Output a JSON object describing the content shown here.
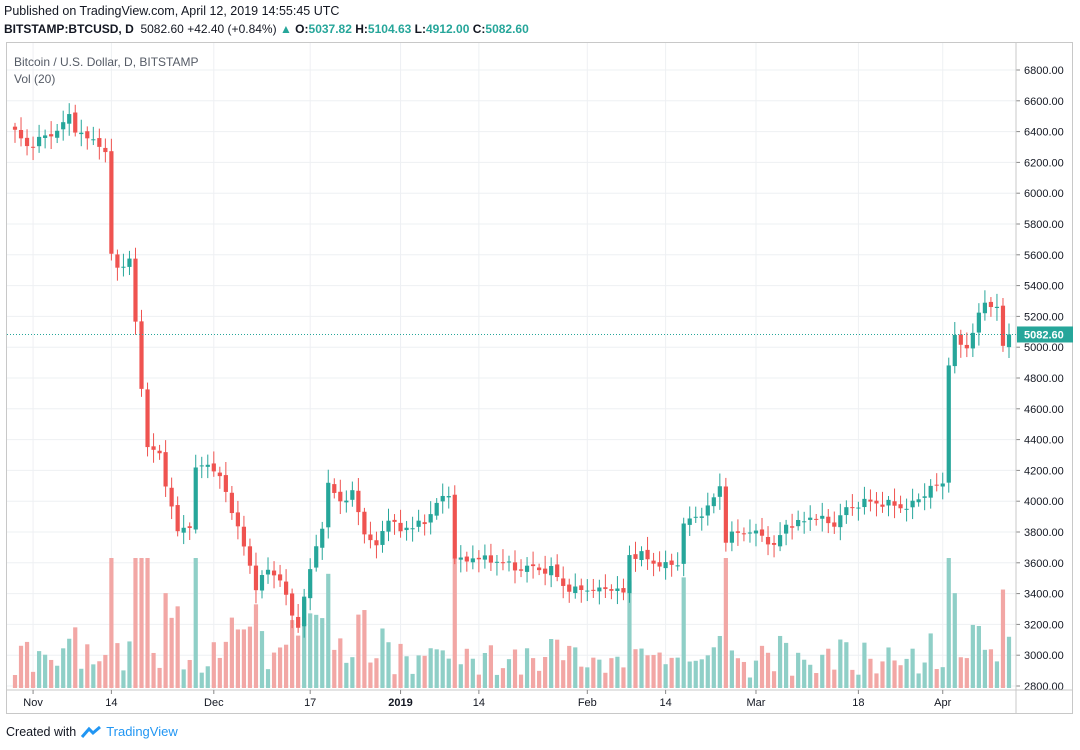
{
  "header": {
    "published": "Published on TradingView.com, April 12, 2019 14:55:45 UTC",
    "symbol": "BITSTAMP:BTCUSD, D",
    "last": "5082.60",
    "change": "+42.40 (+0.84%)",
    "o_label": "O:",
    "o": "5037.82",
    "h_label": "H:",
    "h": "5104.63",
    "l_label": "L:",
    "l": "4912.00",
    "c_label": "C:",
    "c": "5082.60"
  },
  "legend": {
    "title": "Bitcoin / U.S. Dollar, D, BITSTAMP",
    "volume": "Vol (20)"
  },
  "footer": {
    "created": "Created with",
    "brand": "TradingView"
  },
  "colors": {
    "up": "#26a69a",
    "down": "#ef5350",
    "up_vol": "#8fcfc7",
    "down_vol": "#f2a7a5",
    "grid": "#eef0f3",
    "price_tag": "#26a69a"
  },
  "chart_data": {
    "type": "candlestick",
    "title": "Bitcoin / U.S. Dollar, D, BITSTAMP",
    "price_axis": {
      "min": 2800,
      "max": 6800,
      "ticks": [
        "2800.00",
        "3000.00",
        "3200.00",
        "3400.00",
        "3600.00",
        "3800.00",
        "4000.00",
        "4200.00",
        "4400.00",
        "4600.00",
        "4800.00",
        "5000.00",
        "5200.00",
        "5400.00",
        "5600.00",
        "5800.00",
        "6000.00",
        "6200.00",
        "6400.00",
        "6600.00",
        "6800.00"
      ]
    },
    "time_axis": {
      "start": "2018-10-29",
      "end": "2019-04-12",
      "labels": [
        {
          "text": "Nov",
          "date": "2018-11-01",
          "bold": false
        },
        {
          "text": "14",
          "date": "2018-11-14",
          "bold": false
        },
        {
          "text": "Dec",
          "date": "2018-12-01",
          "bold": false
        },
        {
          "text": "17",
          "date": "2018-12-17",
          "bold": false
        },
        {
          "text": "2019",
          "date": "2019-01-01",
          "bold": true
        },
        {
          "text": "14",
          "date": "2019-01-14",
          "bold": false
        },
        {
          "text": "Feb",
          "date": "2019-02-01",
          "bold": false
        },
        {
          "text": "14",
          "date": "2019-02-14",
          "bold": false
        },
        {
          "text": "Mar",
          "date": "2019-03-01",
          "bold": false
        },
        {
          "text": "18",
          "date": "2019-03-18",
          "bold": false
        },
        {
          "text": "Apr",
          "date": "2019-04-01",
          "bold": false
        }
      ]
    },
    "last_price": 5082.6,
    "last_price_label": "5082.60",
    "close_path": [
      [
        "2018-10-29",
        6400
      ],
      [
        "2018-10-31",
        6300
      ],
      [
        "2018-11-02",
        6350
      ],
      [
        "2018-11-04",
        6380
      ],
      [
        "2018-11-06",
        6450
      ],
      [
        "2018-11-07",
        6500
      ],
      [
        "2018-11-08",
        6420
      ],
      [
        "2018-11-10",
        6350
      ],
      [
        "2018-11-12",
        6330
      ],
      [
        "2018-11-13",
        6250
      ],
      [
        "2018-11-14",
        5600
      ],
      [
        "2018-11-15",
        5520
      ],
      [
        "2018-11-17",
        5560
      ],
      [
        "2018-11-19",
        4750
      ],
      [
        "2018-11-20",
        4350
      ],
      [
        "2018-11-22",
        4300
      ],
      [
        "2018-11-24",
        3950
      ],
      [
        "2018-11-25",
        3800
      ],
      [
        "2018-11-27",
        3850
      ],
      [
        "2018-11-28",
        4200
      ],
      [
        "2018-11-30",
        4250
      ],
      [
        "2018-12-02",
        4150
      ],
      [
        "2018-12-04",
        3950
      ],
      [
        "2018-12-06",
        3700
      ],
      [
        "2018-12-08",
        3450
      ],
      [
        "2018-12-10",
        3550
      ],
      [
        "2018-12-12",
        3500
      ],
      [
        "2018-12-14",
        3250
      ],
      [
        "2018-12-15",
        3200
      ],
      [
        "2018-12-17",
        3550
      ],
      [
        "2018-12-19",
        3850
      ],
      [
        "2018-12-20",
        4100
      ],
      [
        "2018-12-22",
        4000
      ],
      [
        "2018-12-24",
        4050
      ],
      [
        "2018-12-26",
        3800
      ],
      [
        "2018-12-28",
        3700
      ],
      [
        "2018-12-30",
        3900
      ],
      [
        "2019-01-01",
        3800
      ],
      [
        "2019-01-03",
        3850
      ],
      [
        "2019-01-05",
        3850
      ],
      [
        "2019-01-07",
        4000
      ],
      [
        "2019-01-09",
        4030
      ],
      [
        "2019-01-10",
        3650
      ],
      [
        "2019-01-12",
        3600
      ],
      [
        "2019-01-14",
        3650
      ],
      [
        "2019-01-16",
        3600
      ],
      [
        "2019-01-18",
        3620
      ],
      [
        "2019-01-20",
        3550
      ],
      [
        "2019-01-22",
        3580
      ],
      [
        "2019-01-24",
        3550
      ],
      [
        "2019-01-26",
        3560
      ],
      [
        "2019-01-28",
        3450
      ],
      [
        "2019-01-30",
        3420
      ],
      [
        "2019-02-01",
        3430
      ],
      [
        "2019-02-03",
        3420
      ],
      [
        "2019-02-05",
        3440
      ],
      [
        "2019-02-07",
        3400
      ],
      [
        "2019-02-08",
        3650
      ],
      [
        "2019-02-10",
        3650
      ],
      [
        "2019-02-12",
        3600
      ],
      [
        "2019-02-14",
        3580
      ],
      [
        "2019-02-16",
        3600
      ],
      [
        "2019-02-17",
        3850
      ],
      [
        "2019-02-19",
        3900
      ],
      [
        "2019-02-21",
        3950
      ],
      [
        "2019-02-23",
        4100
      ],
      [
        "2019-02-24",
        3750
      ],
      [
        "2019-02-26",
        3800
      ],
      [
        "2019-02-28",
        3800
      ],
      [
        "2019-03-02",
        3780
      ],
      [
        "2019-03-04",
        3700
      ],
      [
        "2019-03-06",
        3850
      ],
      [
        "2019-03-08",
        3850
      ],
      [
        "2019-03-10",
        3900
      ],
      [
        "2019-03-12",
        3880
      ],
      [
        "2019-03-14",
        3850
      ],
      [
        "2019-03-16",
        3950
      ],
      [
        "2019-03-18",
        3980
      ],
      [
        "2019-03-20",
        4000
      ],
      [
        "2019-03-22",
        3980
      ],
      [
        "2019-03-24",
        3980
      ],
      [
        "2019-03-26",
        3950
      ],
      [
        "2019-03-28",
        4020
      ],
      [
        "2019-03-30",
        4080
      ],
      [
        "2019-04-01",
        4120
      ],
      [
        "2019-04-02",
        4900
      ],
      [
        "2019-04-03",
        5050
      ],
      [
        "2019-04-05",
        5000
      ],
      [
        "2019-04-07",
        5200
      ],
      [
        "2019-04-08",
        5300
      ],
      [
        "2019-04-10",
        5250
      ],
      [
        "2019-04-11",
        5000
      ],
      [
        "2019-04-12",
        5082.6
      ]
    ]
  }
}
